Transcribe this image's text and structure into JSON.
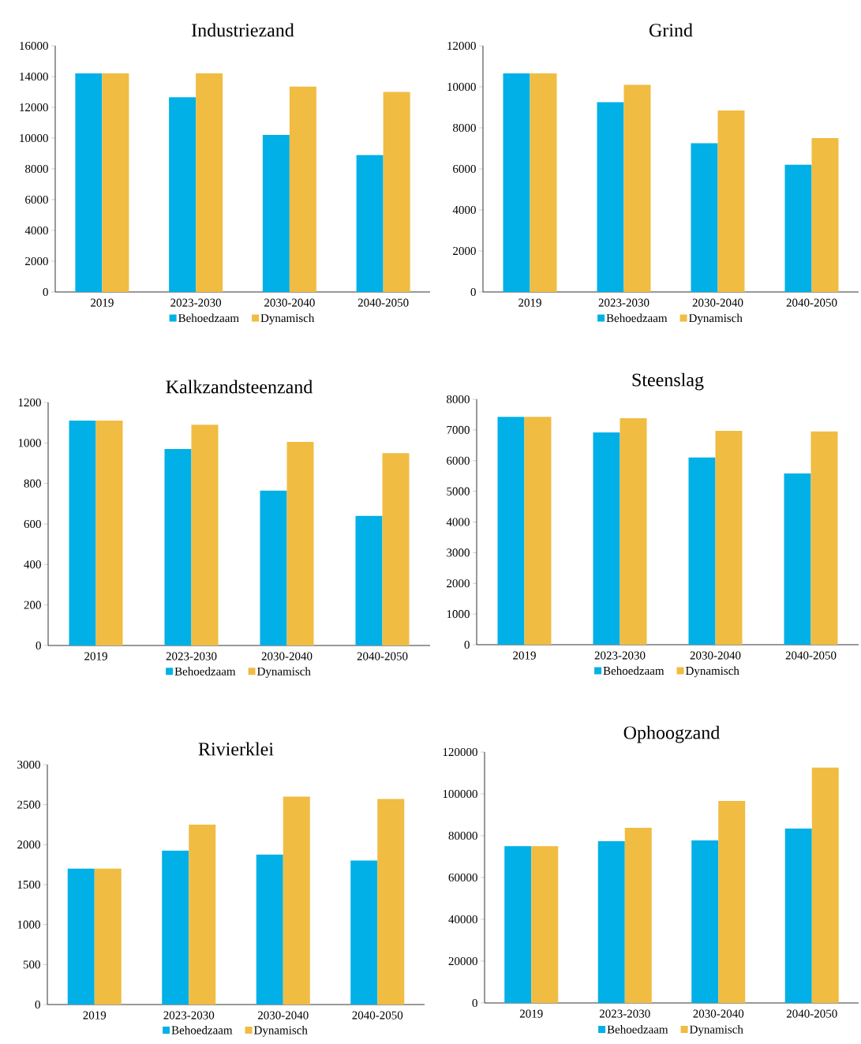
{
  "chart_data": [
    {
      "type": "bar",
      "title": "Industriezand",
      "categories": [
        "2019",
        "2023-2030",
        "2030-2040",
        "2040-2050"
      ],
      "ylim": [
        0,
        16000
      ],
      "yticks": [
        0,
        2000,
        4000,
        6000,
        8000,
        10000,
        12000,
        14000,
        16000
      ],
      "legend": "bottom",
      "series": [
        {
          "name": "Behoedzaam",
          "color": "#00b0e6",
          "values": [
            14200,
            12650,
            10200,
            8900
          ]
        },
        {
          "name": "Dynamisch",
          "color": "#f0bc42",
          "values": [
            14200,
            14200,
            13350,
            13000
          ]
        }
      ]
    },
    {
      "type": "bar",
      "title": "Grind",
      "categories": [
        "2019",
        "2023-2030",
        "2030-2040",
        "2040-2050"
      ],
      "ylim": [
        0,
        12000
      ],
      "yticks": [
        0,
        2000,
        4000,
        6000,
        8000,
        10000,
        12000
      ],
      "legend": "bottom",
      "series": [
        {
          "name": "Behoedzaam",
          "color": "#00b0e6",
          "values": [
            10650,
            9250,
            7250,
            6200
          ]
        },
        {
          "name": "Dynamisch",
          "color": "#f0bc42",
          "values": [
            10650,
            10100,
            8850,
            7500
          ]
        }
      ]
    },
    {
      "type": "bar",
      "title": "Kalkzandsteenzand",
      "categories": [
        "2019",
        "2023-2030",
        "2030-2040",
        "2040-2050"
      ],
      "ylim": [
        0,
        1200
      ],
      "yticks": [
        0,
        200,
        400,
        600,
        800,
        1000,
        1200
      ],
      "legend": "bottom",
      "series": [
        {
          "name": "Behoedzaam",
          "color": "#00b0e6",
          "values": [
            1110,
            970,
            765,
            640
          ]
        },
        {
          "name": "Dynamisch",
          "color": "#f0bc42",
          "values": [
            1110,
            1090,
            1005,
            950
          ]
        }
      ]
    },
    {
      "type": "bar",
      "title": "Steenslag",
      "categories": [
        "2019",
        "2023-2030",
        "2030-2040",
        "2040-2050"
      ],
      "ylim": [
        0,
        8000
      ],
      "yticks": [
        0,
        1000,
        2000,
        3000,
        4000,
        5000,
        6000,
        7000,
        8000
      ],
      "legend": "bottom",
      "series": [
        {
          "name": "Behoedzaam",
          "color": "#00b0e6",
          "values": [
            7430,
            6920,
            6100,
            5580
          ]
        },
        {
          "name": "Dynamisch",
          "color": "#f0bc42",
          "values": [
            7430,
            7380,
            6970,
            6950
          ]
        }
      ]
    },
    {
      "type": "bar",
      "title": "Rivierklei",
      "categories": [
        "2019",
        "2023-2030",
        "2030-2040",
        "2040-2050"
      ],
      "ylim": [
        0,
        3000
      ],
      "yticks": [
        0,
        500,
        1000,
        1500,
        2000,
        2500,
        3000
      ],
      "legend": "bottom",
      "series": [
        {
          "name": "Behoedzaam",
          "color": "#00b0e6",
          "values": [
            1700,
            1925,
            1875,
            1800
          ]
        },
        {
          "name": "Dynamisch",
          "color": "#f0bc42",
          "values": [
            1700,
            2250,
            2600,
            2570
          ]
        }
      ]
    },
    {
      "type": "bar",
      "title": "Ophoogzand",
      "categories": [
        "2019",
        "2023-2030",
        "2030-2040",
        "2040-2050"
      ],
      "ylim": [
        0,
        120000
      ],
      "yticks": [
        0,
        20000,
        40000,
        60000,
        80000,
        100000,
        120000
      ],
      "legend": "bottom",
      "series": [
        {
          "name": "Behoedzaam",
          "color": "#00b0e6",
          "values": [
            75000,
            77400,
            77700,
            83400
          ]
        },
        {
          "name": "Dynamisch",
          "color": "#f0bc42",
          "values": [
            75000,
            83800,
            96600,
            112500
          ]
        }
      ]
    }
  ]
}
